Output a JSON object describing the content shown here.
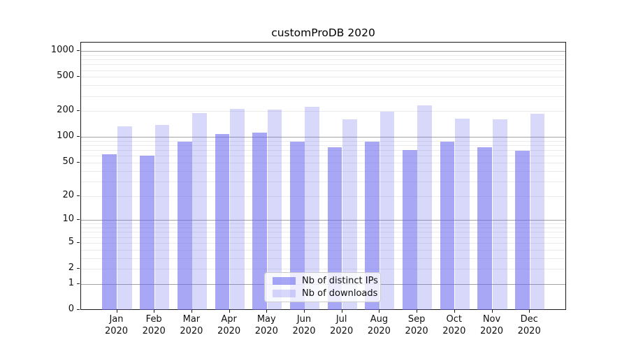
{
  "chart_data": {
    "type": "bar",
    "title": "customProDB 2020",
    "categories": [
      "Jan",
      "Feb",
      "Mar",
      "Apr",
      "May",
      "Jun",
      "Jul",
      "Aug",
      "Sep",
      "Oct",
      "Nov",
      "Dec"
    ],
    "category_year": "2020",
    "series": [
      {
        "name": "Nb of distinct IPs",
        "color": "#6464f0",
        "alpha": 0.57,
        "values": [
          64,
          61,
          89,
          111,
          114,
          89,
          77,
          90,
          71,
          90,
          77,
          70
        ]
      },
      {
        "name": "Nb of downloads",
        "color": "#6464f0",
        "alpha": 0.25,
        "values": [
          135,
          140,
          195,
          218,
          214,
          230,
          163,
          203,
          238,
          168,
          165,
          190
        ]
      }
    ],
    "xlabel": "",
    "ylabel": "",
    "yscale": "log1p",
    "yticks": [
      0,
      1,
      2,
      5,
      10,
      20,
      50,
      100,
      200,
      500,
      1000
    ],
    "ylim": [
      0,
      1300
    ],
    "grid": "horizontal: major lines at powers of 10, faint minor lines at 2-9 multiples",
    "legend_position": "inside plot, lower center",
    "colors": {
      "grid_major": "#a3a3a3",
      "grid_minor": "#ebebeb",
      "frame": "#1a1a1a",
      "legend_border": "#cccccc",
      "bar_base": "#6464f0"
    }
  }
}
